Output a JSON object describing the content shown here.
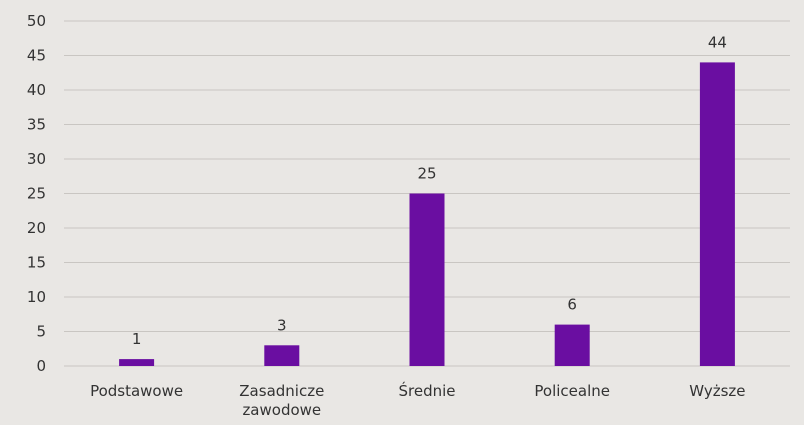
{
  "chart_data": {
    "type": "bar",
    "categories": [
      "Podstawowe",
      "Zasadnicze zawodowe",
      "Średnie",
      "Policealne",
      "Wyższe"
    ],
    "category_lines": [
      [
        "Podstawowe"
      ],
      [
        "Zasadnicze",
        "zawodowe"
      ],
      [
        "Średnie"
      ],
      [
        "Policealne"
      ],
      [
        "Wyższe"
      ]
    ],
    "values": [
      1,
      3,
      25,
      6,
      44
    ],
    "value_labels": [
      "1",
      "3",
      "25",
      "6",
      "44"
    ],
    "ylim": [
      0,
      50
    ],
    "yticks": [
      0,
      5,
      10,
      15,
      20,
      25,
      30,
      35,
      40,
      45,
      50
    ],
    "ytick_labels": [
      "0",
      "5",
      "10",
      "15",
      "20",
      "25",
      "30",
      "35",
      "40",
      "45",
      "50"
    ],
    "grid": true,
    "legend": "none",
    "title": "",
    "xlabel": "",
    "ylabel": "",
    "colors": {
      "bar": "#6a0ea1",
      "grid": "#c9c6c2",
      "background": "#e9e7e4",
      "text": "#333333"
    }
  }
}
